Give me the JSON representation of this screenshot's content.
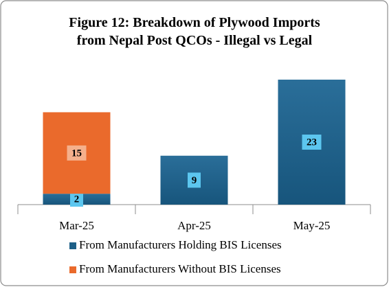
{
  "chart_data": {
    "type": "stacked-bar",
    "title": "Figure 12: Breakdown of Plywood Imports from Nepal Post QCOs - Illegal vs Legal",
    "categories": [
      "Mar-25",
      "Apr-25",
      "May-25"
    ],
    "series": [
      {
        "name": "From Manufacturers Holding BIS Licenses",
        "color": "#1d5f87",
        "label_color": "#5cc6ef",
        "values": [
          2,
          9,
          23
        ]
      },
      {
        "name": "From Manufacturers Without BIS Licenses",
        "color": "#ea6a2c",
        "label_color": "#f5b08c",
        "values": [
          15,
          null,
          null
        ]
      }
    ]
  }
}
